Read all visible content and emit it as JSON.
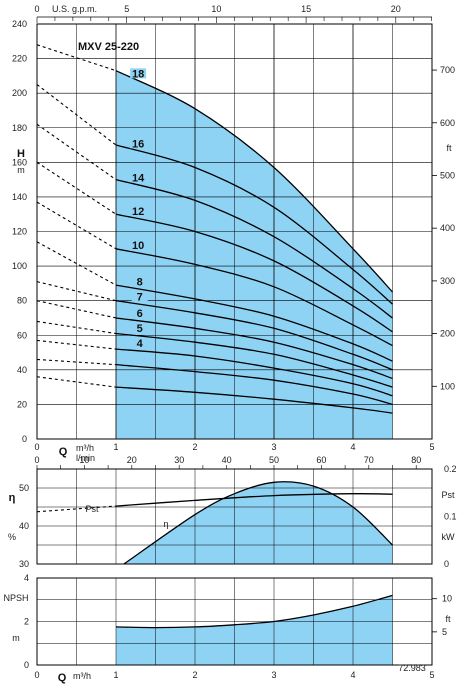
{
  "chart_data": {
    "model": "MXV 25-220",
    "code": "72.983",
    "colors": {
      "fill": "#8fd3f4",
      "curve": "#000000",
      "grid": "#000000"
    },
    "head_chart": {
      "type": "line",
      "x_label": "Q",
      "x_units": [
        "m³/h",
        "l/min"
      ],
      "x_ticks_m3h": [
        "0",
        "1",
        "2",
        "3",
        "4",
        "5"
      ],
      "top_label": "U.S. g.p.m.",
      "top_ticks": [
        "0",
        "5",
        "10",
        "15",
        "20"
      ],
      "y_label": "H",
      "y_unit": "m",
      "y_ticks_m": [
        "0",
        "20",
        "40",
        "60",
        "80",
        "100",
        "120",
        "140",
        "160",
        "180",
        "200",
        "220",
        "240"
      ],
      "y_right_unit": "ft",
      "y_right_ticks": [
        "100",
        "200",
        "300",
        "400",
        "500",
        "600",
        "700"
      ],
      "xlim": [
        0,
        5
      ],
      "ylim": [
        0,
        240
      ],
      "operating_range": [
        1,
        4.5
      ],
      "series": [
        {
          "name": "18",
          "x": [
            0,
            1,
            2,
            3,
            4,
            4.5
          ],
          "y": [
            228,
            213,
            191,
            157,
            110,
            85
          ]
        },
        {
          "name": "16",
          "x": [
            0,
            1,
            2,
            3,
            4,
            4.5
          ],
          "y": [
            205,
            170,
            157,
            134,
            98,
            78
          ]
        },
        {
          "name": "14",
          "x": [
            0,
            1,
            2,
            3,
            4,
            4.5
          ],
          "y": [
            182,
            150,
            138,
            117,
            87,
            70
          ]
        },
        {
          "name": "12",
          "x": [
            0,
            1,
            2,
            3,
            4,
            4.5
          ],
          "y": [
            160,
            130,
            120,
            103,
            77,
            62
          ]
        },
        {
          "name": "10",
          "x": [
            0,
            1,
            2,
            3,
            4,
            4.5
          ],
          "y": [
            137,
            110,
            101,
            88,
            66,
            54
          ]
        },
        {
          "name": "8",
          "x": [
            0,
            1,
            2,
            3,
            4,
            4.5
          ],
          "y": [
            114,
            89,
            81,
            71,
            55,
            45
          ]
        },
        {
          "name": "7",
          "x": [
            0,
            1,
            2,
            3,
            4,
            4.5
          ],
          "y": [
            91,
            80,
            73,
            64,
            49,
            40
          ]
        },
        {
          "name": "6",
          "x": [
            0,
            1,
            2,
            3,
            4,
            4.5
          ],
          "y": [
            80,
            70,
            64,
            56,
            43,
            35
          ]
        },
        {
          "name": "5",
          "x": [
            0,
            1,
            2,
            3,
            4,
            4.5
          ],
          "y": [
            68,
            61,
            56,
            49,
            37,
            30
          ]
        },
        {
          "name": "4",
          "x": [
            0,
            1,
            2,
            3,
            4,
            4.5
          ],
          "y": [
            57,
            52,
            48,
            41,
            32,
            25
          ]
        },
        {
          "name": "",
          "x": [
            0,
            1,
            2,
            3,
            4,
            4.5
          ],
          "y": [
            46,
            43,
            39,
            34,
            26,
            20
          ]
        },
        {
          "name": "",
          "x": [
            0,
            1,
            2,
            3,
            4,
            4.5
          ],
          "y": [
            36,
            30,
            27,
            23,
            18,
            15
          ]
        }
      ]
    },
    "efficiency_chart": {
      "type": "line",
      "x_ticks_lmin": [
        "0",
        "10",
        "20",
        "30",
        "40",
        "50",
        "60",
        "70",
        "80"
      ],
      "y_label": "η",
      "y_unit": "%",
      "y_ticks": [
        "30",
        "40",
        "50"
      ],
      "ylim": [
        30,
        55
      ],
      "right_label": "Pst",
      "right_unit": "kW",
      "right_ticks": [
        "0",
        "0.1",
        "0.2"
      ],
      "right_ylim": [
        0,
        0.2
      ],
      "series": [
        {
          "name": "η",
          "x": [
            1.1,
            2,
            2.5,
            3,
            3.5,
            4,
            4.5
          ],
          "y": [
            30,
            43,
            48.5,
            51.5,
            50.5,
            45,
            35
          ]
        },
        {
          "name": "Pst",
          "x": [
            0,
            0.5,
            1,
            2,
            3,
            4,
            4.5
          ],
          "y": [
            0.11,
            0.116,
            0.122,
            0.134,
            0.144,
            0.148,
            0.147
          ]
        }
      ]
    },
    "npsh_chart": {
      "type": "line",
      "x_label": "Q",
      "x_unit": "m³/h",
      "x_ticks_m3h": [
        "0",
        "1",
        "2",
        "3",
        "4",
        "5"
      ],
      "y_label": "NPSH",
      "y_unit": "m",
      "y_ticks": [
        "0",
        "2",
        "4"
      ],
      "ylim": [
        0,
        4
      ],
      "right_unit": "ft",
      "right_ticks": [
        "5",
        "10"
      ],
      "series": [
        {
          "name": "NPSH",
          "x": [
            1,
            1.5,
            2,
            2.5,
            3,
            3.5,
            4,
            4.5
          ],
          "y": [
            1.75,
            1.72,
            1.75,
            1.85,
            2.0,
            2.3,
            2.7,
            3.2
          ]
        }
      ]
    }
  }
}
